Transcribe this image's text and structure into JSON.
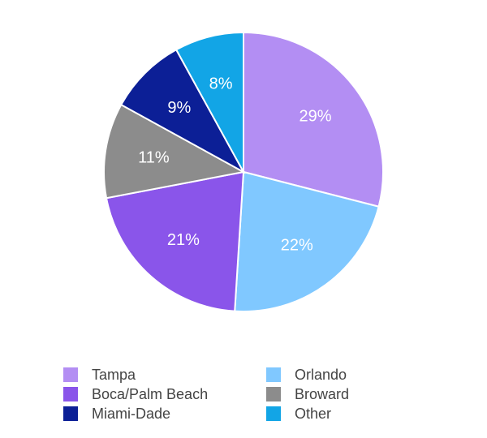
{
  "chart_data": {
    "type": "pie",
    "slices": [
      {
        "label": "Tampa",
        "value": 29,
        "display": "29%",
        "color": "#b38ef3"
      },
      {
        "label": "Orlando",
        "value": 22,
        "display": "22%",
        "color": "#80c8ff"
      },
      {
        "label": "Boca/Palm Beach",
        "value": 21,
        "display": "21%",
        "color": "#8a55ea"
      },
      {
        "label": "Broward",
        "value": 11,
        "display": "11%",
        "color": "#8c8c8c"
      },
      {
        "label": "Miami-Dade",
        "value": 9,
        "display": "9%",
        "color": "#0c1f96"
      },
      {
        "label": "Other",
        "value": 8,
        "display": "8%",
        "color": "#12a5e6"
      }
    ],
    "legend_placement": "bottom",
    "legend": {
      "items": [
        {
          "label": "Tampa",
          "color": "#b38ef3"
        },
        {
          "label": "Orlando",
          "color": "#80c8ff"
        },
        {
          "label": "Boca/Palm Beach",
          "color": "#8a55ea"
        },
        {
          "label": "Broward",
          "color": "#8c8c8c"
        },
        {
          "label": "Miami-Dade",
          "color": "#0c1f96"
        },
        {
          "label": "Other",
          "color": "#12a5e6"
        }
      ]
    }
  }
}
